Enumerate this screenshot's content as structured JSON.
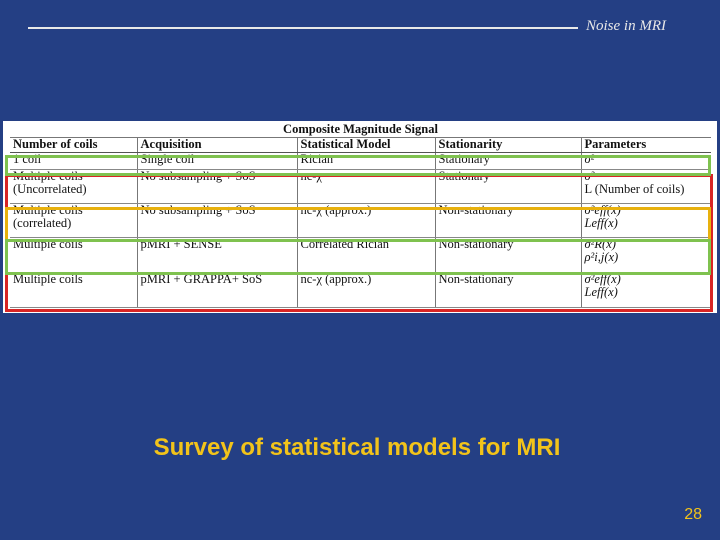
{
  "header": {
    "title": "Noise in MRI"
  },
  "table": {
    "caption": "Composite Magnitude Signal",
    "columns": [
      "Number of coils",
      "Acquisition",
      "Statistical Model",
      "Stationarity",
      "Parameters"
    ],
    "rows": [
      {
        "coils": [
          "1 coil"
        ],
        "acquisition": [
          "Single coil"
        ],
        "model": [
          "Rician"
        ],
        "stationarity": [
          "Stationary"
        ],
        "parameters": [
          "σ²"
        ]
      },
      {
        "coils": [
          "Multiple coils",
          "(Uncorrelated)"
        ],
        "acquisition": [
          "No subsampling + SoS"
        ],
        "model": [
          "nc-χ"
        ],
        "stationarity": [
          "Stationary"
        ],
        "parameters": [
          "σ²",
          "L (Number of coils)"
        ]
      },
      {
        "coils": [
          "Multiple coils",
          "(correlated)"
        ],
        "acquisition": [
          "No subsampling + SoS"
        ],
        "model": [
          "nc-χ (approx.)"
        ],
        "stationarity": [
          "Non-stationary"
        ],
        "parameters": [
          "σ²eff(x)",
          "Leff(x)"
        ]
      },
      {
        "coils": [
          "Multiple coils"
        ],
        "acquisition": [
          "pMRI + SENSE"
        ],
        "model": [
          "Correlated Rician"
        ],
        "stationarity": [
          "Non-stationary"
        ],
        "parameters": [
          "σ²R(x)",
          "ρ²i,j(x)"
        ]
      },
      {
        "coils": [
          "Multiple coils"
        ],
        "acquisition": [
          "pMRI + GRAPPA+ SoS"
        ],
        "model": [
          "nc-χ (approx.)"
        ],
        "stationarity": [
          "Non-stationary"
        ],
        "parameters": [
          "σ²eff(x)",
          "Leff(x)"
        ]
      }
    ]
  },
  "highlight_colors": {
    "red": "#d92525",
    "yellow": "#e8b10e",
    "green": "#7fc24f"
  },
  "caption": "Survey of statistical models for MRI",
  "page_number": "28"
}
